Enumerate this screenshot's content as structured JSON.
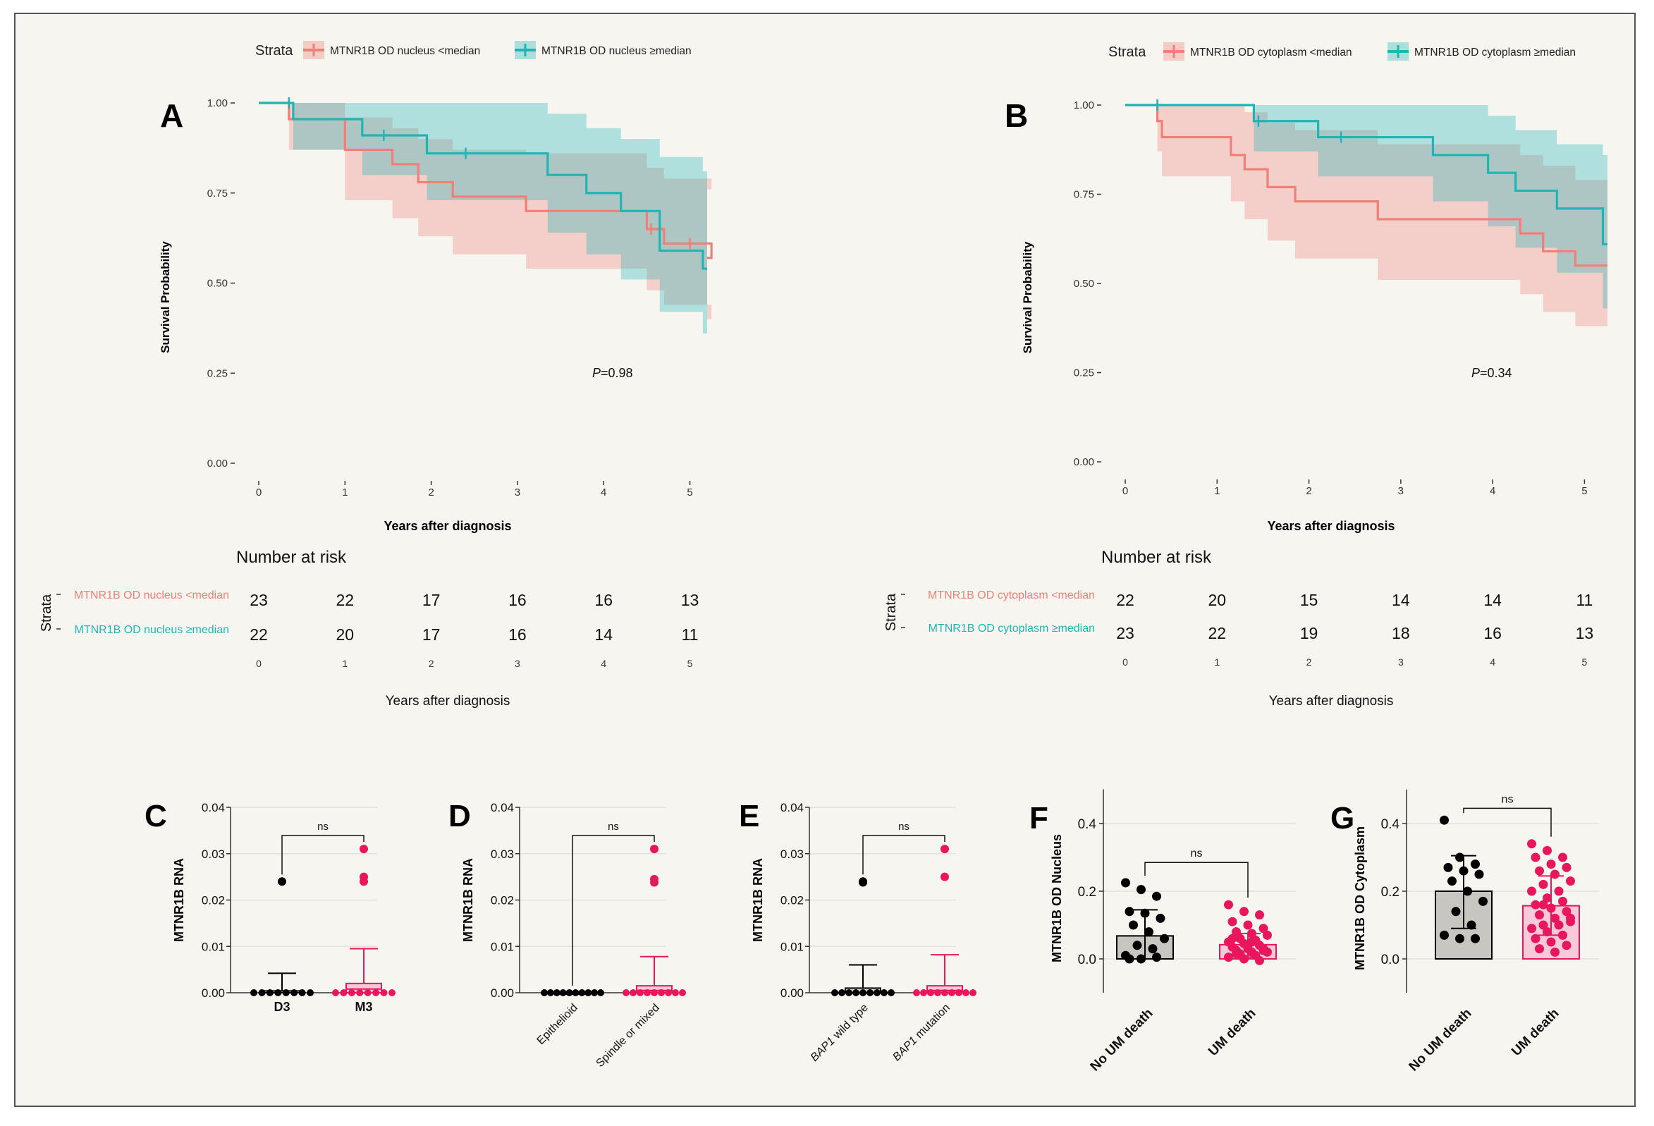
{
  "chart_data": [
    {
      "id": "A",
      "type": "line",
      "subtype": "kaplan-meier",
      "panel_label": "A",
      "legend_title": "Strata",
      "ylabel": "Survival Probability",
      "xlabel": "Years after diagnosis",
      "xlim": [
        0,
        5.2
      ],
      "ylim": [
        0,
        1
      ],
      "xticks": [
        "0",
        "1",
        "2",
        "3",
        "4",
        "5"
      ],
      "yticks": [
        "0.00",
        "0.25",
        "0.50",
        "0.75",
        "1.00"
      ],
      "p_label": "P",
      "p_value": "=0.98",
      "series": [
        {
          "name": "MTNR1B OD nucleus <median",
          "color": "#f07f78",
          "times": [
            0,
            0.35,
            1.0,
            1.55,
            1.85,
            2.25,
            3.1,
            4.15,
            4.5,
            4.7,
            5.25
          ],
          "surv": [
            1.0,
            0.955,
            0.87,
            0.83,
            0.78,
            0.74,
            0.7,
            0.7,
            0.65,
            0.61,
            0.57
          ],
          "upper": [
            1.0,
            1.0,
            0.96,
            0.93,
            0.9,
            0.87,
            0.86,
            0.86,
            0.82,
            0.79,
            0.76
          ],
          "lower": [
            1.0,
            0.87,
            0.73,
            0.68,
            0.63,
            0.58,
            0.54,
            0.54,
            0.48,
            0.44,
            0.4
          ],
          "censor_times": [
            0.35,
            4.55,
            5.0
          ],
          "censor_surv": [
            1.0,
            0.65,
            0.61
          ]
        },
        {
          "name": "MTNR1B OD nucleus ≥median",
          "color": "#20b5b5",
          "times": [
            0,
            0.4,
            1.2,
            1.95,
            3.35,
            3.8,
            4.2,
            4.65,
            5.15
          ],
          "surv": [
            1.0,
            0.955,
            0.91,
            0.86,
            0.8,
            0.75,
            0.7,
            0.59,
            0.54
          ],
          "upper": [
            1.0,
            1.0,
            1.0,
            1.0,
            0.97,
            0.93,
            0.9,
            0.85,
            0.81
          ],
          "lower": [
            1.0,
            0.87,
            0.8,
            0.73,
            0.64,
            0.58,
            0.51,
            0.42,
            0.36
          ],
          "censor_times": [
            0.35,
            1.45,
            2.4
          ],
          "censor_surv": [
            1.0,
            0.91,
            0.86
          ]
        }
      ],
      "risk_table": {
        "title": "Number at risk",
        "strata_label": "Strata",
        "rows": [
          {
            "name": "MTNR1B OD nucleus <median",
            "counts": [
              "23",
              "22",
              "17",
              "16",
              "16",
              "13"
            ]
          },
          {
            "name": "MTNR1B OD nucleus ≥median",
            "counts": [
              "22",
              "20",
              "17",
              "16",
              "14",
              "11"
            ]
          }
        ],
        "xticks": [
          "0",
          "1",
          "2",
          "3",
          "4",
          "5"
        ],
        "xlabel": "Years after diagnosis"
      }
    },
    {
      "id": "B",
      "type": "line",
      "subtype": "kaplan-meier",
      "panel_label": "B",
      "legend_title": "Strata",
      "ylabel": "Survival Probability",
      "xlabel": "Years after diagnosis",
      "xlim": [
        0,
        5.25
      ],
      "ylim": [
        0,
        1
      ],
      "xticks": [
        "0",
        "1",
        "2",
        "3",
        "4",
        "5"
      ],
      "yticks": [
        "0.00",
        "0.25",
        "0.50",
        "0.75",
        "1.00"
      ],
      "p_label": "P",
      "p_value": "=0.34",
      "series": [
        {
          "name": "MTNR1B OD cytoplasm <median",
          "color": "#f07f78",
          "times": [
            0,
            0.35,
            0.4,
            1.15,
            1.3,
            1.55,
            1.85,
            2.75,
            4.3,
            4.55,
            4.9
          ],
          "surv": [
            1.0,
            0.955,
            0.91,
            0.86,
            0.82,
            0.77,
            0.73,
            0.68,
            0.64,
            0.59,
            0.55
          ],
          "upper": [
            1.0,
            1.0,
            1.0,
            1.0,
            0.98,
            0.95,
            0.93,
            0.89,
            0.86,
            0.83,
            0.79
          ],
          "lower": [
            1.0,
            0.87,
            0.8,
            0.73,
            0.68,
            0.62,
            0.57,
            0.51,
            0.47,
            0.42,
            0.38
          ],
          "censor_times": [
            0.35
          ],
          "censor_surv": [
            1.0
          ]
        },
        {
          "name": "MTNR1B OD cytoplasm ≥median",
          "color": "#20b5b5",
          "times": [
            0,
            1.4,
            2.1,
            3.35,
            3.95,
            4.25,
            4.7,
            5.2
          ],
          "surv": [
            1.0,
            0.955,
            0.91,
            0.86,
            0.81,
            0.76,
            0.71,
            0.61
          ],
          "upper": [
            1.0,
            1.0,
            1.0,
            1.0,
            0.97,
            0.93,
            0.89,
            0.86
          ],
          "lower": [
            1.0,
            0.87,
            0.8,
            0.73,
            0.66,
            0.6,
            0.53,
            0.43
          ],
          "censor_times": [
            0.35,
            1.45,
            2.35
          ],
          "censor_surv": [
            1.0,
            0.955,
            0.91
          ]
        }
      ],
      "risk_table": {
        "title": "Number at risk",
        "strata_label": "Strata",
        "rows": [
          {
            "name": "MTNR1B OD cytoplasm <median",
            "counts": [
              "22",
              "20",
              "15",
              "14",
              "14",
              "11"
            ]
          },
          {
            "name": "MTNR1B OD cytoplasm ≥median",
            "counts": [
              "23",
              "22",
              "19",
              "18",
              "16",
              "13"
            ]
          }
        ],
        "xticks": [
          "0",
          "1",
          "2",
          "3",
          "4",
          "5"
        ],
        "xlabel": "Years after diagnosis"
      }
    },
    {
      "id": "C",
      "type": "box",
      "panel_label": "C",
      "ylabel": "MTNR1B RNA",
      "ylim": [
        0,
        0.04
      ],
      "yticks": [
        "0.00",
        "0.01",
        "0.02",
        "0.03",
        "0.04"
      ],
      "categories": [
        "D3",
        "M3"
      ],
      "x_italic": false,
      "x_rotated": false,
      "sig_label": "ns",
      "groups": [
        {
          "name": "D3",
          "color": "#000000",
          "fill": "#d6d3ce",
          "median": 0,
          "q1": 0,
          "q3": 0.0004,
          "whisker": 0.0042,
          "points": [
            0.024
          ],
          "zero_points": 8
        },
        {
          "name": "M3",
          "color": "#e8175d",
          "fill": "#f9c9d9",
          "median": 0.0008,
          "q1": 0,
          "q3": 0.002,
          "whisker": 0.0095,
          "points": [
            0.031,
            0.025,
            0.024
          ],
          "zero_points": 8
        }
      ]
    },
    {
      "id": "D",
      "type": "box",
      "panel_label": "D",
      "ylabel": "MTNR1B RNA",
      "ylim": [
        0,
        0.04
      ],
      "yticks": [
        "0.00",
        "0.01",
        "0.02",
        "0.03",
        "0.04"
      ],
      "categories": [
        "Epithelioid",
        "Spindle or mixed"
      ],
      "x_italic": false,
      "x_rotated": true,
      "sig_label": "ns",
      "groups": [
        {
          "name": "Epithelioid",
          "color": "#000000",
          "fill": "#d6d3ce",
          "median": 0,
          "q1": 0,
          "q3": 0,
          "whisker": 0,
          "points": [],
          "zero_points": 10
        },
        {
          "name": "Spindle or mixed",
          "color": "#e8175d",
          "fill": "#f9c9d9",
          "median": 0.0005,
          "q1": 0,
          "q3": 0.0015,
          "whisker": 0.0078,
          "points": [
            0.031,
            0.0245,
            0.0238
          ],
          "zero_points": 9
        }
      ]
    },
    {
      "id": "E",
      "type": "box",
      "panel_label": "E",
      "ylabel": "MTNR1B RNA",
      "ylim": [
        0,
        0.04
      ],
      "yticks": [
        "0.00",
        "0.01",
        "0.02",
        "0.03",
        "0.04"
      ],
      "categories": [
        "BAP1 wild type",
        "BAP1 mutation"
      ],
      "x_italic_word": "BAP1",
      "x_rotated": true,
      "sig_label": "ns",
      "groups": [
        {
          "name": "BAP1 wild type",
          "color": "#000000",
          "fill": "#d6d3ce",
          "median": 0,
          "q1": 0,
          "q3": 0.001,
          "whisker": 0.006,
          "points": [
            0.024,
            0.0238
          ],
          "zero_points": 9
        },
        {
          "name": "BAP1 mutation",
          "color": "#e8175d",
          "fill": "#f9c9d9",
          "median": 0.0005,
          "q1": 0,
          "q3": 0.0015,
          "whisker": 0.0082,
          "points": [
            0.031,
            0.025
          ],
          "zero_points": 9
        }
      ]
    },
    {
      "id": "F",
      "type": "bar",
      "panel_label": "F",
      "ylabel": "MTNR1B OD Nucleus",
      "ylim": [
        -0.1,
        0.5
      ],
      "yticks": [
        "0.0",
        "0.2",
        "0.4"
      ],
      "ytick_values": [
        0,
        0.2,
        0.4
      ],
      "categories": [
        "No UM death",
        "UM death"
      ],
      "sig_label": "ns",
      "groups": [
        {
          "name": "No UM death",
          "color": "#000000",
          "fill": "#c8c6c1",
          "mean": 0.068,
          "sd_low": 0.0,
          "sd_high": 0.145,
          "points": [
            0.225,
            0.205,
            0.185,
            0.14,
            0.135,
            0.12,
            0.1,
            0.08,
            0.06,
            0.04,
            0.03,
            0.01,
            0.0,
            0.005,
            0.0
          ]
        },
        {
          "name": "UM death",
          "color": "#e8175d",
          "fill": "#f9c9d9",
          "mean": 0.042,
          "sd_low": 0.005,
          "sd_high": 0.075,
          "points": [
            0.16,
            0.14,
            0.13,
            0.11,
            0.1,
            0.09,
            0.08,
            0.075,
            0.07,
            0.06,
            0.055,
            0.05,
            0.045,
            0.04,
            0.035,
            0.03,
            0.03,
            0.025,
            0.02,
            0.02,
            0.015,
            0.01,
            0.005,
            0.0,
            -0.005,
            0.06,
            0.04,
            0.025,
            0.015,
            0.05
          ]
        }
      ]
    },
    {
      "id": "G",
      "type": "bar",
      "panel_label": "G",
      "ylabel": "MTNR1B OD Cytoplasm",
      "ylim": [
        -0.1,
        0.5
      ],
      "yticks": [
        "0.0",
        "0.2",
        "0.4"
      ],
      "ytick_values": [
        0,
        0.2,
        0.4
      ],
      "categories": [
        "No UM death",
        "UM death"
      ],
      "sig_label": "ns",
      "groups": [
        {
          "name": "No UM death",
          "color": "#000000",
          "fill": "#c8c6c1",
          "mean": 0.2,
          "sd_low": 0.09,
          "sd_high": 0.305,
          "points": [
            0.41,
            0.3,
            0.28,
            0.27,
            0.26,
            0.25,
            0.23,
            0.2,
            0.17,
            0.14,
            0.1,
            0.07,
            0.06,
            0.06
          ]
        },
        {
          "name": "UM death",
          "color": "#e8175d",
          "fill": "#f9c9d9",
          "mean": 0.157,
          "sd_low": 0.07,
          "sd_high": 0.245,
          "points": [
            0.34,
            0.32,
            0.3,
            0.3,
            0.28,
            0.27,
            0.26,
            0.25,
            0.23,
            0.22,
            0.2,
            0.2,
            0.18,
            0.17,
            0.16,
            0.15,
            0.14,
            0.13,
            0.12,
            0.11,
            0.1,
            0.1,
            0.09,
            0.08,
            0.07,
            0.06,
            0.05,
            0.04,
            0.03,
            0.02,
            0.12,
            0.16
          ]
        }
      ]
    }
  ]
}
